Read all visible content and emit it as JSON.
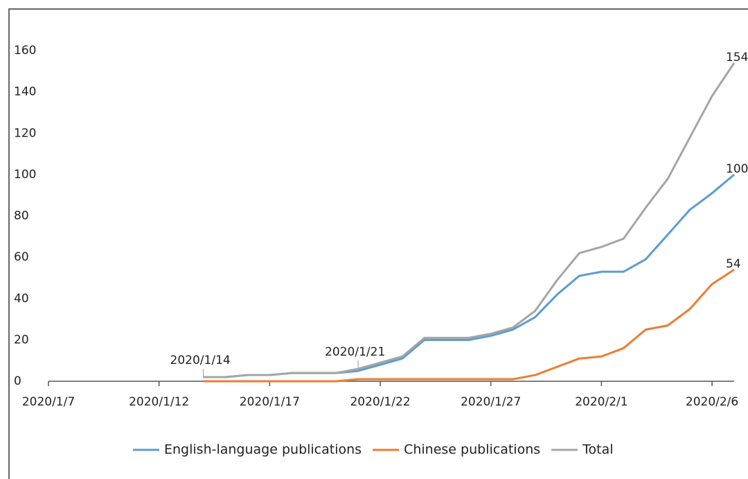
{
  "chart_data": {
    "type": "line",
    "x": [
      "2020/1/14",
      "2020/1/15",
      "2020/1/16",
      "2020/1/17",
      "2020/1/18",
      "2020/1/19",
      "2020/1/20",
      "2020/1/21",
      "2020/1/22",
      "2020/1/23",
      "2020/1/24",
      "2020/1/25",
      "2020/1/26",
      "2020/1/27",
      "2020/1/28",
      "2020/1/29",
      "2020/1/30",
      "2020/1/31",
      "2020/2/1",
      "2020/2/2",
      "2020/2/3",
      "2020/2/4",
      "2020/2/5",
      "2020/2/6",
      "2020/2/7"
    ],
    "series": [
      {
        "name": "English-language publications",
        "color": "#5b9bd5",
        "values": [
          2,
          2,
          3,
          3,
          4,
          4,
          4,
          5,
          8,
          11,
          20,
          20,
          20,
          22,
          25,
          31,
          42,
          51,
          53,
          53,
          59,
          71,
          83,
          91,
          100
        ]
      },
      {
        "name": "Chinese publications",
        "color": "#ed7d31",
        "values": [
          0,
          0,
          0,
          0,
          0,
          0,
          0,
          1,
          1,
          1,
          1,
          1,
          1,
          1,
          1,
          3,
          7,
          11,
          12,
          16,
          25,
          27,
          35,
          47,
          54
        ]
      },
      {
        "name": "Total",
        "color": "#a5a5a5",
        "values": [
          2,
          2,
          3,
          3,
          4,
          4,
          4,
          6,
          9,
          12,
          21,
          21,
          21,
          23,
          26,
          34,
          49,
          62,
          65,
          69,
          84,
          98,
          118,
          138,
          154
        ]
      }
    ],
    "xlim": [
      "2020/1/7",
      "2020/2/7"
    ],
    "xticks": [
      "2020/1/7",
      "2020/1/12",
      "2020/1/17",
      "2020/1/22",
      "2020/1/27",
      "2020/2/1",
      "2020/2/6"
    ],
    "ylim": [
      0,
      160
    ],
    "yticks": [
      0,
      20,
      40,
      60,
      80,
      100,
      120,
      140,
      160
    ],
    "annotations": [
      {
        "text": "2020/1/14",
        "x": "2020/1/14"
      },
      {
        "text": "2020/1/21",
        "x": "2020/1/21"
      }
    ],
    "legend": "bottom",
    "grid": false
  }
}
